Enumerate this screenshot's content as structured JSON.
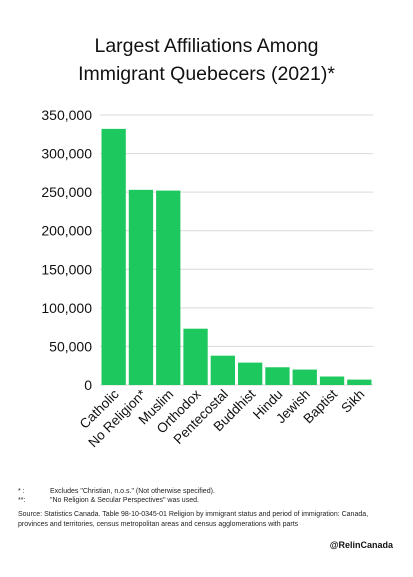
{
  "title_line1": "Largest Affiliations Among",
  "title_line2": "Immigrant Quebecers (2021)*",
  "footnote1_mark": "* :",
  "footnote1_text": "Excludes \"Christian, n.o.s.\" (Not otherwise specified).",
  "footnote2_mark": "**:",
  "footnote2_text": "\"No Religion & Secular Perspectives\" was used.",
  "source": "Source: Statistics Canada. Table 98-10-0345-01 Religion by immigrant status and period of immigration: Canada, provinces and territories, census metropolitan areas and census agglomerations with parts",
  "handle": "@RelinCanada",
  "colors": {
    "bar": "#1dc85f",
    "grid": "#d9d9d9"
  },
  "chart_data": {
    "type": "bar",
    "title": "Largest Affiliations Among Immigrant Quebecers (2021)*",
    "xlabel": "",
    "ylabel": "",
    "categories": [
      "Catholic",
      "No Religion*",
      "Muslim",
      "Orthodox",
      "Pentecostal",
      "Buddhist",
      "Hindu",
      "Jewish",
      "Baptist",
      "Sikh"
    ],
    "values": [
      332000,
      253000,
      252000,
      73000,
      38000,
      29000,
      23000,
      20000,
      11000,
      7000
    ],
    "ylim": [
      0,
      350000
    ],
    "yticks": [
      0,
      50000,
      100000,
      150000,
      200000,
      250000,
      300000,
      350000
    ],
    "ytick_labels": [
      "0",
      "50,000",
      "100,000",
      "150,000",
      "200,000",
      "250,000",
      "300,000",
      "350,000"
    ],
    "grid": true,
    "legend": "none"
  }
}
